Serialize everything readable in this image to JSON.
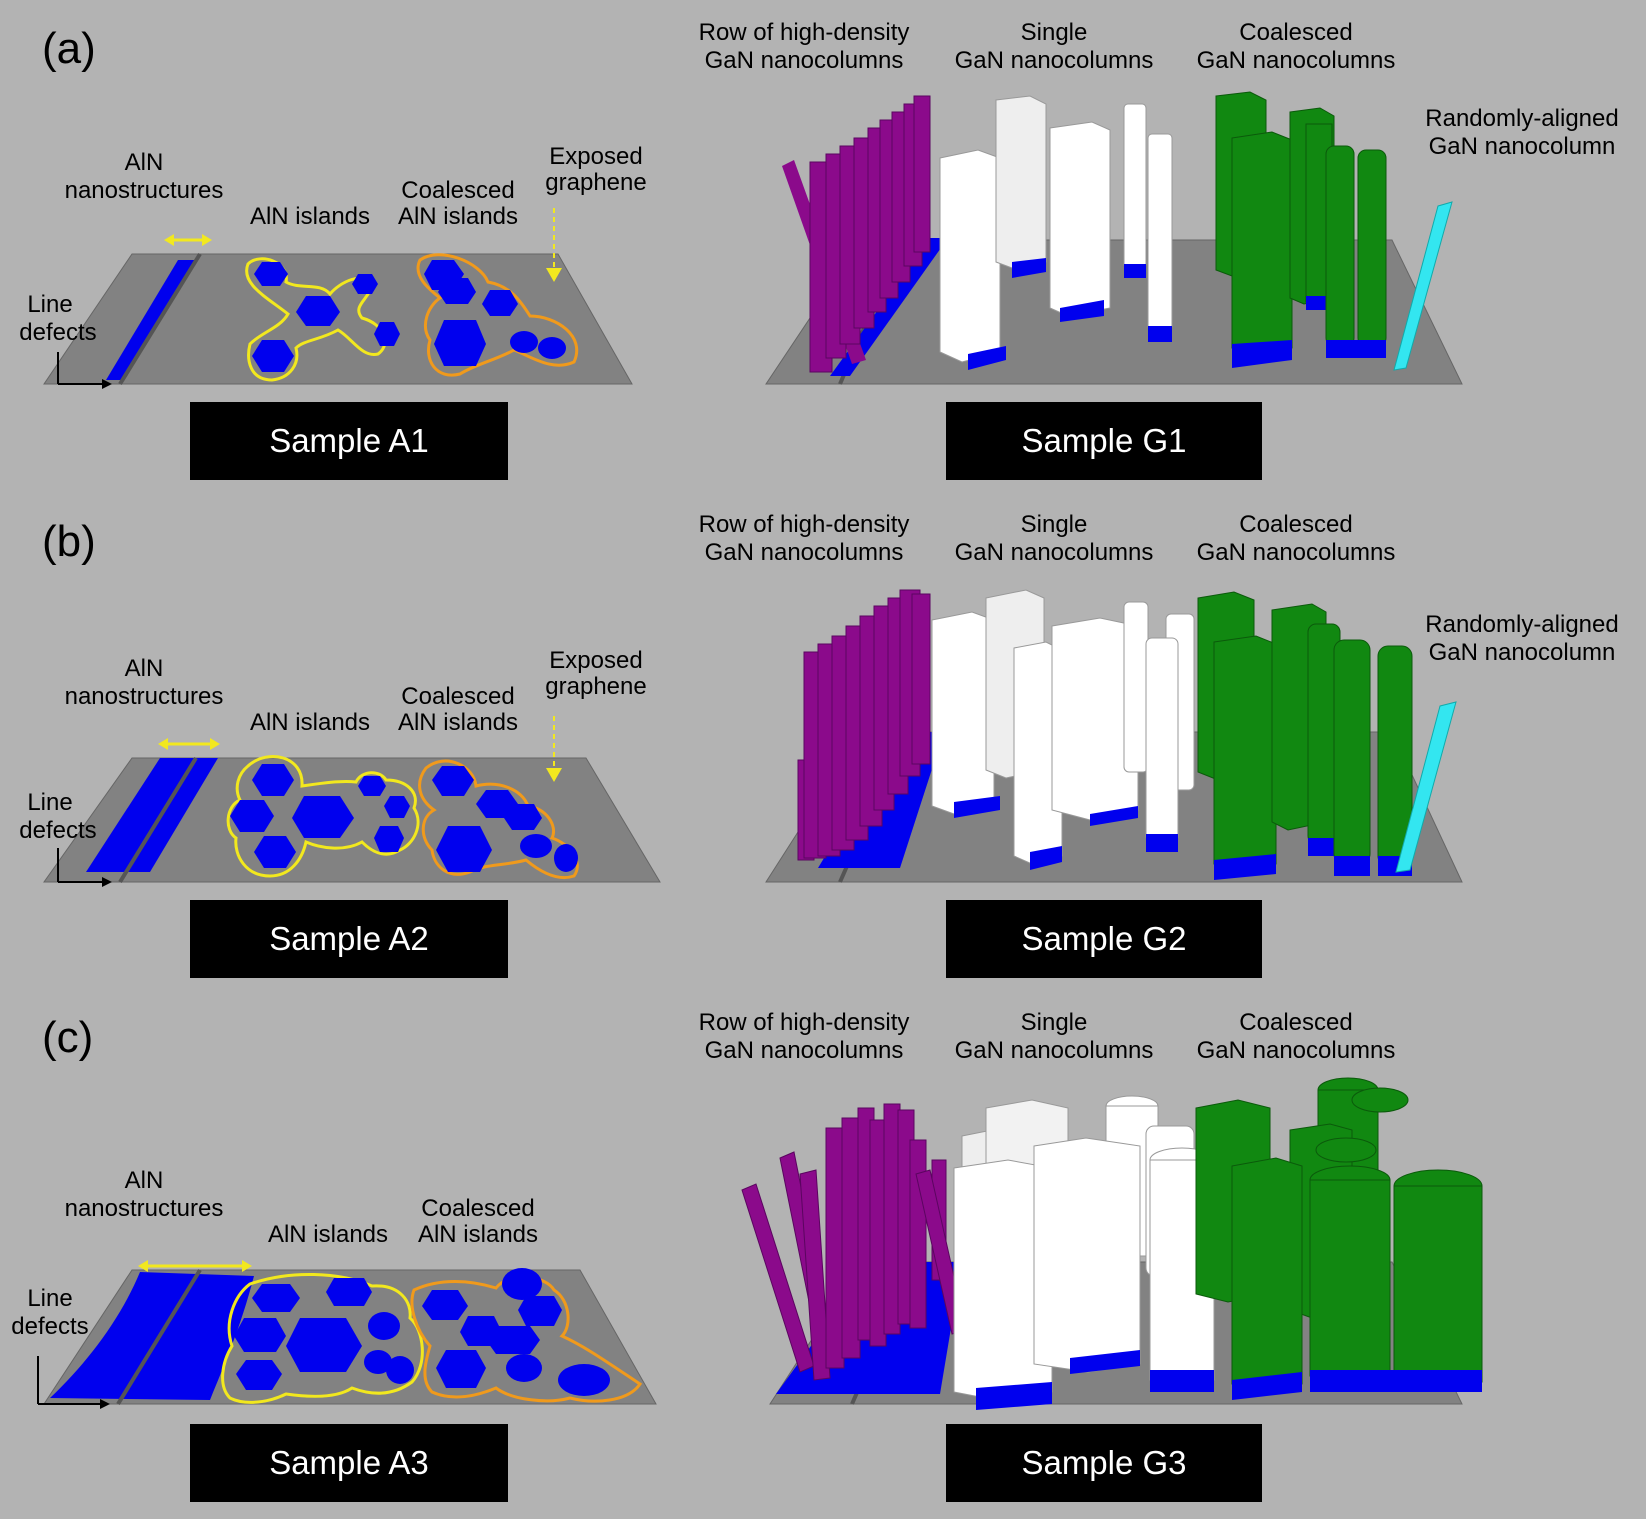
{
  "panels": [
    {
      "panel_label": "(a)",
      "aln": {
        "nanostructures": [
          "AlN",
          "nanostructures"
        ],
        "islands": "AlN islands",
        "coalesced": [
          "Coalesced",
          "AlN islands"
        ],
        "exposed": [
          "Exposed",
          "graphene"
        ],
        "line_defects": [
          "Line",
          "defects"
        ],
        "sample": "Sample A1"
      },
      "gan": {
        "row": [
          "Row of high-density",
          "GaN nanocolumns"
        ],
        "single": [
          "Single",
          "GaN nanocolumns"
        ],
        "coalesced": [
          "Coalesced",
          "GaN nanocolumns"
        ],
        "random": [
          "Randomly-aligned",
          "GaN nanocolumn"
        ],
        "sample": "Sample G1"
      }
    },
    {
      "panel_label": "(b)",
      "aln": {
        "nanostructures": [
          "AlN",
          "nanostructures"
        ],
        "islands": "AlN islands",
        "coalesced": [
          "Coalesced",
          "AlN islands"
        ],
        "exposed": [
          "Exposed",
          "graphene"
        ],
        "line_defects": [
          "Line",
          "defects"
        ],
        "sample": "Sample A2"
      },
      "gan": {
        "row": [
          "Row of high-density",
          "GaN nanocolumns"
        ],
        "single": [
          "Single",
          "GaN nanocolumns"
        ],
        "coalesced": [
          "Coalesced",
          "GaN nanocolumns"
        ],
        "random": [
          "Randomly-aligned",
          "GaN nanocolumn"
        ],
        "sample": "Sample G2"
      }
    },
    {
      "panel_label": "(c)",
      "aln": {
        "nanostructures": [
          "AlN",
          "nanostructures"
        ],
        "islands": "AlN islands",
        "coalesced": [
          "Coalesced",
          "AlN islands"
        ],
        "line_defects": [
          "Line",
          "defects"
        ],
        "sample": "Sample A3"
      },
      "gan": {
        "row": [
          "Row of high-density",
          "GaN nanocolumns"
        ],
        "single": [
          "Single",
          "GaN nanocolumns"
        ],
        "coalesced": [
          "Coalesced",
          "GaN nanocolumns"
        ],
        "sample": "Sample G3"
      }
    }
  ],
  "colors": {
    "background": "#b3b3b3",
    "substrate": "#828282",
    "aln": "#0000ee",
    "row_columns": "#8b0a8b",
    "single_columns": "#ffffff",
    "coalesced_columns": "#118811",
    "random_column": "#33e6f0",
    "island_outline": "#f2e81e",
    "coalesced_outline": "#f09a1c",
    "sample_box": "#000000",
    "sample_text": "#ffffff"
  }
}
